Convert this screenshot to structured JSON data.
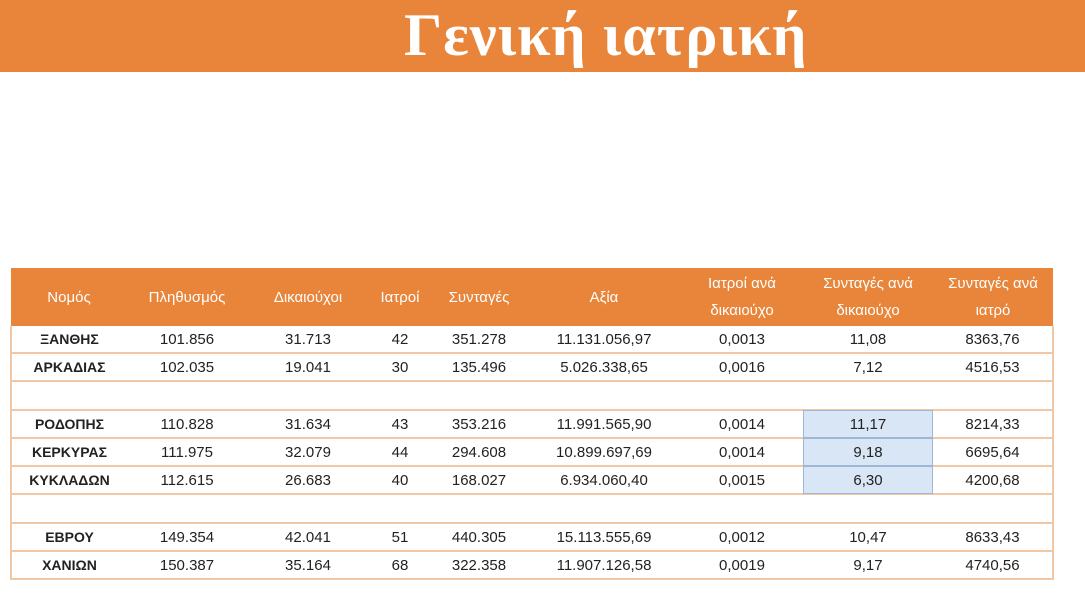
{
  "title": "Γενική ιατρική",
  "table": {
    "headers": [
      "Νομός",
      "Πληθυσμός",
      "Δικαιούχοι",
      "Ιατροί",
      "Συνταγές",
      "Αξία",
      "Ιατροί ανά δικαιούχο",
      "Συνταγές ανά δικαιούχο",
      "Συνταγές ανά ιατρό"
    ],
    "rows": [
      {
        "cells": [
          "ΞΑΝΘΗΣ",
          "101.856",
          "31.713",
          "42",
          "351.278",
          "11.131.056,97",
          "0,0013",
          "11,08",
          "8363,76"
        ]
      },
      {
        "cells": [
          "ΑΡΚΑΔΙΑΣ",
          "102.035",
          "19.041",
          "30",
          "135.496",
          "5.026.338,65",
          "0,0016",
          "7,12",
          "4516,53"
        ]
      },
      {
        "blank": true
      },
      {
        "cells": [
          "ΡΟΔΟΠΗΣ",
          "110.828",
          "31.634",
          "43",
          "353.216",
          "11.991.565,90",
          "0,0014",
          "11,17",
          "8214,33"
        ],
        "highlight": true
      },
      {
        "cells": [
          "ΚΕΡΚΥΡΑΣ",
          "111.975",
          "32.079",
          "44",
          "294.608",
          "10.899.697,69",
          "0,0014",
          "9,18",
          "6695,64"
        ],
        "highlight": true
      },
      {
        "cells": [
          "ΚΥΚΛΑΔΩΝ",
          "112.615",
          "26.683",
          "40",
          "168.027",
          "6.934.060,40",
          "0,0015",
          "6,30",
          "4200,68"
        ],
        "highlight": true
      },
      {
        "blank": true
      },
      {
        "cells": [
          "ΕΒΡΟΥ",
          "149.354",
          "42.041",
          "51",
          "440.305",
          "15.113.555,69",
          "0,0012",
          "10,47",
          "8633,43"
        ]
      },
      {
        "cells": [
          "ΧΑΝΙΩΝ",
          "150.387",
          "35.164",
          "68",
          "322.358",
          "11.907.126,58",
          "0,0019",
          "9,17",
          "4740,56"
        ]
      }
    ]
  },
  "colors": {
    "accent": "#e8853a",
    "highlight": "#d9e6f5",
    "row_border": "#f1c8a6"
  }
}
